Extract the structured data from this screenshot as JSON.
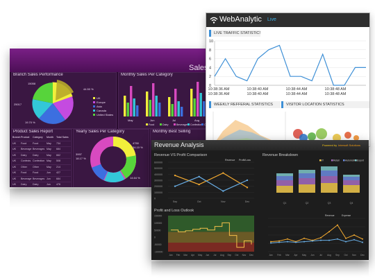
{
  "sales": {
    "title": "Sales D",
    "branch_title": "Branch Sales Performance",
    "monthly_title": "Monthly Sales Per Category",
    "report_title": "Product Sales Report",
    "yearly_title": "Yearly Sales Per Category",
    "best_title": "Monthly Best Selling",
    "pie_labels": [
      "15058",
      "44.50 %",
      "25017",
      "19.70 %"
    ],
    "pie_legend": [
      "UK",
      "Europe",
      "Asia",
      "Canada",
      "United States"
    ],
    "table_headers": [
      "Branch",
      "Product",
      "Category",
      "Month",
      "Total Sales"
    ],
    "table_rows": [
      [
        "UK",
        "Food",
        "Food",
        "May",
        "734"
      ],
      [
        "UK",
        "Beverage",
        "Beverages",
        "May",
        "684"
      ],
      [
        "UK",
        "Dairy",
        "Dairy",
        "May",
        "662"
      ],
      [
        "UK",
        "Confects",
        "Confection",
        "May",
        "508"
      ],
      [
        "UK",
        "Other",
        "Other",
        "May",
        "214"
      ],
      [
        "UK",
        "Food",
        "Food",
        "Jun",
        "427"
      ],
      [
        "UK",
        "Beverage",
        "Beverages",
        "Jun",
        "684"
      ],
      [
        "UK",
        "Dairy",
        "Dairy",
        "Jun",
        "476"
      ],
      [
        "UK",
        "Confects",
        "Confection",
        "Jun",
        "528"
      ]
    ],
    "donut_labels": [
      "4750",
      "34.10 %",
      "3997",
      "18.17 %",
      "14.64 %"
    ],
    "bar_legend": [
      "Food",
      "Dairy",
      "Beverages",
      "Confection",
      "Other"
    ],
    "months": [
      "May",
      "Jun",
      "Jul",
      "Aug"
    ],
    "colors": {
      "bg": "#2a0c30",
      "accent": "#7a1f86"
    }
  },
  "web": {
    "app_title": "WebAnalytic",
    "app_badge": "Live",
    "live_title": "LIVE TRAFFIC STATISTICS",
    "yticks": [
      "10",
      "8",
      "6",
      "4",
      "2",
      "0"
    ],
    "xticks": [
      "10:38:36 AM",
      "10:38:40 AM",
      "10:38:44 AM",
      "10:38:48 AM"
    ],
    "refferal_title": "WEEKLY REFFERAL STATISTICS",
    "visitor_title": "VISITOR LOCATION STATISTICS",
    "colors": {
      "header": "#2e2e2e",
      "line": "#3d8fd6",
      "badge": "#3db3ea"
    }
  },
  "rev": {
    "title": "Revenue Analysis",
    "powered": "Powered by",
    "vendor": "Intersoft Solutions",
    "vs_title": "Revenue VS Profit Comparison",
    "vs_legend": [
      "Revenue",
      "Profit/Loss"
    ],
    "vs_yticks": [
      "600000",
      "500000",
      "400000",
      "300000",
      "200000",
      "100000",
      "0"
    ],
    "vs_xticks": [
      "Sep",
      "Oct",
      "Nov",
      "Dec"
    ],
    "breakdown_title": "Revenue Breakdown",
    "breakdown_legend": [
      "IT",
      "Retail",
      "Automotive",
      "Export"
    ],
    "breakdown_x": [
      "Q1",
      "Q2",
      "Q3",
      "Q4"
    ],
    "outlook_title": "Profit and Loss Outlook",
    "outlook_yticks": [
      "150000",
      "100000",
      "50000",
      "0",
      "-50000",
      "-100000"
    ],
    "months": [
      "Jan",
      "Feb",
      "Mar",
      "Apr",
      "May",
      "Jun",
      "Jul",
      "Aug",
      "Sep",
      "Oct",
      "Nov",
      "Dec"
    ],
    "rx_legend": [
      "Revenue",
      "Expense"
    ],
    "colors": {
      "bg": "#1d1d1d",
      "revenue": "#f0a830",
      "profit": "#6ab0e8",
      "powered": "#f5c518"
    }
  }
}
